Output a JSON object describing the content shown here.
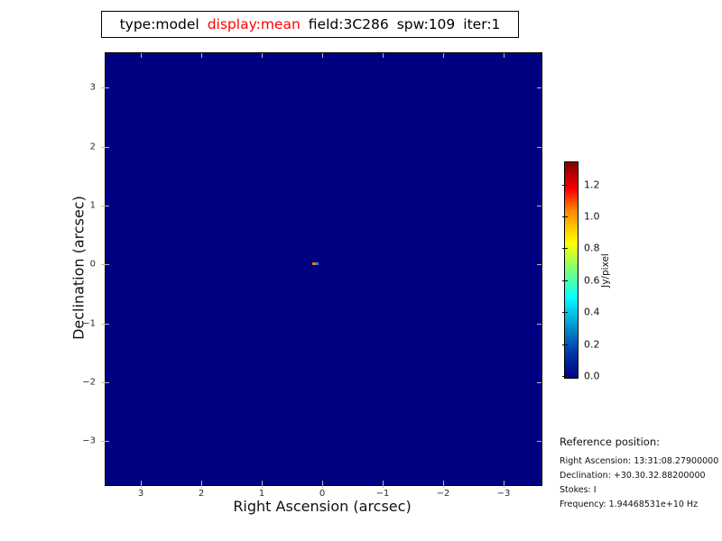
{
  "header": {
    "type_label": "type:model",
    "display_label": "display:mean",
    "field_label": "field:3C286",
    "spw_label": "spw:109",
    "iter_label": "iter:1",
    "display_color": "#ff0000"
  },
  "chart_data": {
    "type": "heatmap",
    "title": "type:model  display:mean  field:3C286  spw:109  iter:1",
    "xlabel": "Right Ascension (arcsec)",
    "ylabel": "Declination (arcsec)",
    "x_ticks": [
      "3",
      "2",
      "1",
      "0",
      "−1",
      "−2",
      "−3"
    ],
    "y_ticks": [
      "3",
      "2",
      "1",
      "0",
      "−1",
      "−2",
      "−3"
    ],
    "xlim": [
      3.6,
      -3.6
    ],
    "ylim": [
      -3.6,
      3.6
    ],
    "grid": false,
    "colormap": "jet",
    "background_value": 0.0,
    "background_color": "#000080",
    "points": [
      {
        "x": 0.15,
        "y": 0.05,
        "description": "unresolved point source at field center, two pixels",
        "pixel_values_est": [
          1.05,
          0.25
        ],
        "pixel_colors": [
          "#e8781e",
          "#3a7cc8"
        ]
      }
    ],
    "colorbar": {
      "label": "Jy/pixel",
      "ticks": [
        "0.0",
        "0.2",
        "0.4",
        "0.6",
        "0.8",
        "1.0",
        "1.2"
      ],
      "range": [
        0.0,
        1.35
      ],
      "position": "right"
    }
  },
  "reference": {
    "heading": "Reference position:",
    "lines": [
      "Right Ascension: 13:31:08.27900000",
      "Declination: +30.30.32.88200000",
      "Stokes: I",
      "Frequency: 1.94468531e+10 Hz"
    ]
  }
}
